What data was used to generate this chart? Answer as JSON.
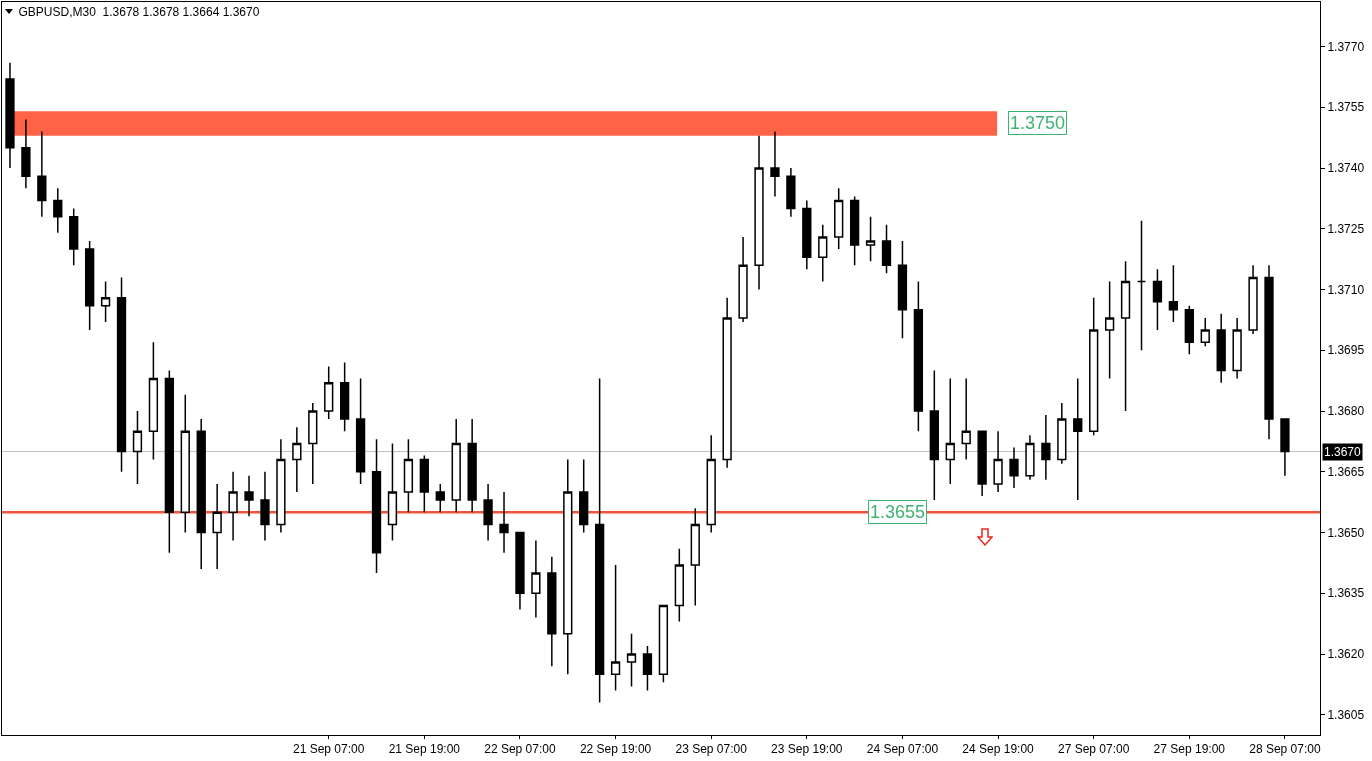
{
  "chart_data": {
    "type": "candlestick",
    "title": "GBPUSD,M30  1.3678 1.3678 1.3664 1.3670",
    "categories": [
      null,
      null,
      null,
      null,
      null,
      null,
      null,
      null,
      null,
      null,
      null,
      null,
      null,
      null,
      null,
      null,
      null,
      null,
      null,
      null,
      "21 Sep 07:00",
      null,
      null,
      null,
      null,
      null,
      "21 Sep 19:00",
      null,
      null,
      null,
      null,
      null,
      "22 Sep 07:00",
      null,
      null,
      null,
      null,
      null,
      "22 Sep 19:00",
      null,
      null,
      null,
      null,
      null,
      "23 Sep 07:00",
      null,
      null,
      null,
      null,
      null,
      "23 Sep 19:00",
      null,
      null,
      null,
      null,
      null,
      "24 Sep 07:00",
      null,
      null,
      null,
      null,
      null,
      "24 Sep 19:00",
      null,
      null,
      null,
      null,
      null,
      "27 Sep 07:00",
      null,
      null,
      null,
      null,
      null,
      "27 Sep 19:00",
      null,
      null,
      null,
      null,
      null,
      "28 Sep 07:00"
    ],
    "ohlc": [
      [
        1.3762,
        1.3766,
        1.374,
        1.3745
      ],
      [
        1.3745,
        1.3752,
        1.3735,
        1.3738
      ],
      [
        1.3738,
        1.3749,
        1.3728,
        1.3732
      ],
      [
        1.3732,
        1.3735,
        1.3724,
        1.3728
      ],
      [
        1.3728,
        1.373,
        1.3716,
        1.372
      ],
      [
        1.372,
        1.3722,
        1.37,
        1.3706
      ],
      [
        1.3706,
        1.3712,
        1.3702,
        1.3708
      ],
      [
        1.3708,
        1.3713,
        1.3665,
        1.367
      ],
      [
        1.367,
        1.368,
        1.3662,
        1.3675
      ],
      [
        1.3675,
        1.3697,
        1.3668,
        1.3688
      ],
      [
        1.3688,
        1.369,
        1.3645,
        1.3655
      ],
      [
        1.3655,
        1.3684,
        1.365,
        1.3675
      ],
      [
        1.3675,
        1.3678,
        1.3641,
        1.365
      ],
      [
        1.365,
        1.3662,
        1.3641,
        1.3655
      ],
      [
        1.3655,
        1.3665,
        1.3648,
        1.366
      ],
      [
        1.366,
        1.3664,
        1.3654,
        1.3658
      ],
      [
        1.3658,
        1.3665,
        1.3648,
        1.3652
      ],
      [
        1.3652,
        1.3673,
        1.365,
        1.3668
      ],
      [
        1.3668,
        1.3676,
        1.366,
        1.3672
      ],
      [
        1.3672,
        1.3682,
        1.3662,
        1.368
      ],
      [
        1.368,
        1.3691,
        1.3678,
        1.3687
      ],
      [
        1.3687,
        1.3692,
        1.3675,
        1.3678
      ],
      [
        1.3678,
        1.3688,
        1.3662,
        1.3665
      ],
      [
        1.3665,
        1.3673,
        1.364,
        1.3645
      ],
      [
        1.3652,
        1.3672,
        1.3648,
        1.366
      ],
      [
        1.366,
        1.3673,
        1.3655,
        1.3668
      ],
      [
        1.3668,
        1.3669,
        1.3655,
        1.366
      ],
      [
        1.366,
        1.3662,
        1.3655,
        1.3658
      ],
      [
        1.3658,
        1.3678,
        1.3655,
        1.3672
      ],
      [
        1.3672,
        1.3678,
        1.3655,
        1.3658
      ],
      [
        1.3658,
        1.3662,
        1.3648,
        1.3652
      ],
      [
        1.3652,
        1.366,
        1.3645,
        1.365
      ],
      [
        1.365,
        1.365,
        1.3631,
        1.3635
      ],
      [
        1.3635,
        1.3648,
        1.3629,
        1.364
      ],
      [
        1.364,
        1.3644,
        1.3617,
        1.3625
      ],
      [
        1.3625,
        1.3668,
        1.3615,
        1.366
      ],
      [
        1.366,
        1.3668,
        1.365,
        1.3652
      ],
      [
        1.3652,
        1.3688,
        1.3608,
        1.3615
      ],
      [
        1.3615,
        1.3642,
        1.3611,
        1.3618
      ],
      [
        1.3618,
        1.3625,
        1.3612,
        1.362
      ],
      [
        1.362,
        1.3622,
        1.3611,
        1.3615
      ],
      [
        1.3615,
        1.3632,
        1.3613,
        1.3632
      ],
      [
        1.3632,
        1.3646,
        1.3628,
        1.3642
      ],
      [
        1.3642,
        1.3656,
        1.3632,
        1.3652
      ],
      [
        1.3652,
        1.3674,
        1.365,
        1.3668
      ],
      [
        1.3668,
        1.3708,
        1.3666,
        1.3703
      ],
      [
        1.3703,
        1.3723,
        1.3702,
        1.3716
      ],
      [
        1.3716,
        1.3748,
        1.371,
        1.374
      ],
      [
        1.374,
        1.3749,
        1.3733,
        1.3738
      ],
      [
        1.3738,
        1.374,
        1.3728,
        1.373
      ],
      [
        1.373,
        1.3732,
        1.3715,
        1.3718
      ],
      [
        1.3718,
        1.3726,
        1.3712,
        1.3723
      ],
      [
        1.3723,
        1.3735,
        1.372,
        1.3732
      ],
      [
        1.3732,
        1.3733,
        1.3716,
        1.3721
      ],
      [
        1.3721,
        1.3728,
        1.3717,
        1.3722
      ],
      [
        1.3722,
        1.3726,
        1.3714,
        1.3716
      ],
      [
        1.3716,
        1.3722,
        1.3698,
        1.3705
      ],
      [
        1.3705,
        1.3712,
        1.3675,
        1.368
      ],
      [
        1.368,
        1.369,
        1.3658,
        1.3668
      ],
      [
        1.3668,
        1.3688,
        1.3662,
        1.3672
      ],
      [
        1.3672,
        1.3688,
        1.3668,
        1.3675
      ],
      [
        1.3675,
        1.3675,
        1.3659,
        1.3662
      ],
      [
        1.3662,
        1.3675,
        1.366,
        1.3668
      ],
      [
        1.3668,
        1.3671,
        1.3661,
        1.3664
      ],
      [
        1.3664,
        1.3674,
        1.3663,
        1.3672
      ],
      [
        1.3672,
        1.3679,
        1.3663,
        1.3668
      ],
      [
        1.3668,
        1.3682,
        1.3667,
        1.3678
      ],
      [
        1.3678,
        1.3688,
        1.3658,
        1.3675
      ],
      [
        1.3675,
        1.3708,
        1.3674,
        1.37
      ],
      [
        1.37,
        1.3712,
        1.3688,
        1.3703
      ],
      [
        1.3703,
        1.3717,
        1.368,
        1.3712
      ],
      [
        1.3712,
        1.3727,
        1.3695,
        1.3712
      ],
      [
        1.3712,
        1.3715,
        1.37,
        1.3707
      ],
      [
        1.3707,
        1.3716,
        1.3702,
        1.3705
      ],
      [
        1.3705,
        1.3706,
        1.3694,
        1.3697
      ],
      [
        1.3697,
        1.3703,
        1.3696,
        1.37
      ],
      [
        1.37,
        1.3704,
        1.3687,
        1.369
      ],
      [
        1.369,
        1.3703,
        1.3688,
        1.37
      ],
      [
        1.37,
        1.3716,
        1.3699,
        1.3713
      ],
      [
        1.3713,
        1.3716,
        1.3673,
        1.3678
      ],
      [
        1.3678,
        1.3678,
        1.3664,
        1.367
      ]
    ],
    "ylim": [
      1.36,
      1.3781
    ],
    "yticks": [
      1.3605,
      {
        "value": 1.362,
        "label": "1.3620"
      },
      1.3635,
      {
        "value": 1.365,
        "label": "1.3650"
      },
      1.3665,
      {
        "value": 1.368,
        "label": "1.3680"
      },
      1.3695,
      {
        "value": 1.371,
        "label": "1.3710"
      },
      1.3725,
      {
        "value": 1.374,
        "label": "1.3740"
      },
      1.3755,
      {
        "value": 1.377,
        "label": "1.3770"
      }
    ],
    "bands": [
      {
        "axis": "y",
        "from": 1.3748,
        "to": 1.3754,
        "label": "1.3750",
        "color": "#ff6347"
      }
    ],
    "ref_lines": [
      {
        "axis": "y",
        "value": 1.367,
        "label": "1.3670",
        "color": "#c0c0c0"
      },
      {
        "axis": "y",
        "value": 1.3655,
        "color": "#f0553c"
      }
    ],
    "annotations": [
      {
        "text": "1.3655",
        "y": 1.3655
      }
    ],
    "grid": false,
    "legend": false
  }
}
